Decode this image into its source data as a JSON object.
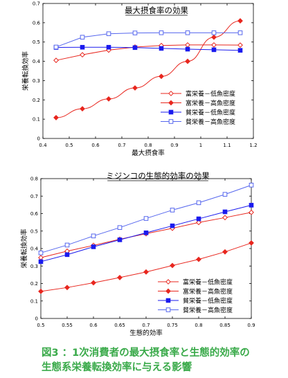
{
  "caption": {
    "line1": "図3 ：1次消費者の最大摂食率と生態的効率の",
    "line2": "生態系栄養転換効率に与える影響"
  },
  "chart_data": [
    {
      "type": "line",
      "title": "最大摂食率の効果",
      "xlabel": "最大摂食率",
      "ylabel": "栄養転換効率",
      "xlim": [
        0.4,
        1.2
      ],
      "ylim": [
        0,
        0.7
      ],
      "xticks": [
        "0.4",
        "0.5",
        "0.6",
        "0.7",
        "0.8",
        "0.9",
        "1",
        "1.1",
        "1.2"
      ],
      "yticks": [
        "0",
        "0.1",
        "0.2",
        "0.3",
        "0.4",
        "0.5",
        "0.6",
        "0.7"
      ],
      "legend_position": "right",
      "x": [
        0.45,
        0.55,
        0.65,
        0.75,
        0.85,
        0.95,
        1.05,
        1.15
      ],
      "series": [
        {
          "name": "富栄養－低魚密度",
          "color": "#e8261e",
          "marker": "open-diamond",
          "values": [
            0.405,
            0.434,
            0.458,
            0.474,
            0.482,
            0.485,
            0.485,
            0.484
          ]
        },
        {
          "name": "富栄養－高魚密度",
          "color": "#e8261e",
          "marker": "filled-diamond",
          "values": [
            0.108,
            0.154,
            0.205,
            0.262,
            0.322,
            0.4,
            0.525,
            0.61
          ]
        },
        {
          "name": "貧栄養－低魚密度",
          "color": "#1a1aee",
          "marker": "filled-square",
          "values": [
            0.472,
            0.473,
            0.473,
            0.471,
            0.467,
            0.463,
            0.46,
            0.457
          ]
        },
        {
          "name": "貧栄養－高魚密度",
          "color": "#5566ee",
          "marker": "open-square",
          "values": [
            0.474,
            0.525,
            0.543,
            0.547,
            0.548,
            0.548,
            0.548,
            0.548
          ]
        }
      ]
    },
    {
      "type": "line",
      "title": "ミジンコの生態的効率の効果",
      "xlabel": "生態的効率",
      "ylabel": "栄養転換効率",
      "xlim": [
        0.5,
        0.9
      ],
      "ylim": [
        0,
        0.8
      ],
      "xticks": [
        "0.5",
        "0.55",
        "0.6",
        "0.65",
        "0.7",
        "0.75",
        "0.8",
        "0.85",
        "0.9"
      ],
      "yticks": [
        "0",
        "0.1",
        "0.2",
        "0.3",
        "0.4",
        "0.5",
        "0.6",
        "0.7",
        "0.8"
      ],
      "legend_position": "bottom-right",
      "x": [
        0.5,
        0.55,
        0.6,
        0.65,
        0.7,
        0.75,
        0.8,
        0.85,
        0.9
      ],
      "series": [
        {
          "name": "富栄養－低魚密度",
          "color": "#e8261e",
          "marker": "open-diamond",
          "values": [
            0.348,
            0.385,
            0.418,
            0.453,
            0.485,
            0.516,
            0.549,
            0.577,
            0.607
          ]
        },
        {
          "name": "富栄養－高魚密度",
          "color": "#e8261e",
          "marker": "filled-diamond",
          "values": [
            0.155,
            0.177,
            0.204,
            0.234,
            0.266,
            0.303,
            0.338,
            0.381,
            0.432
          ]
        },
        {
          "name": "貧栄養－低魚密度",
          "color": "#1a1aee",
          "marker": "filled-square",
          "values": [
            0.325,
            0.365,
            0.41,
            0.45,
            0.49,
            0.53,
            0.57,
            0.61,
            0.648
          ]
        },
        {
          "name": "貧栄養－高魚密度",
          "color": "#5566ee",
          "marker": "open-square",
          "values": [
            0.375,
            0.42,
            0.472,
            0.52,
            0.572,
            0.62,
            0.662,
            0.71,
            0.763
          ]
        }
      ]
    }
  ]
}
